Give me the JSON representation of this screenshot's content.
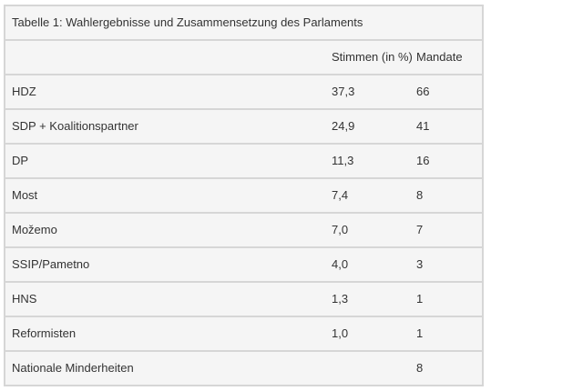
{
  "table": {
    "caption": "Tabelle 1: Wahlergebnisse und Zusammensetzung des Parlaments",
    "header": [
      null,
      "Stimmen (in %)",
      "Mandate"
    ],
    "rows": [
      [
        "HDZ",
        "37,3",
        "66"
      ],
      [
        "SDP + Koalitionspartner",
        "24,9",
        "41"
      ],
      [
        "DP",
        "11,3",
        "16"
      ],
      [
        "Most",
        "7,4",
        "8"
      ],
      [
        "Možemo",
        "7,0",
        "7"
      ],
      [
        "SSIP/Pametno",
        "4,0",
        "3"
      ],
      [
        "HNS",
        "1,3",
        "1"
      ],
      [
        "Reformisten",
        "1,0",
        "1"
      ],
      [
        "Nationale Minderheiten",
        null,
        "8"
      ]
    ]
  }
}
